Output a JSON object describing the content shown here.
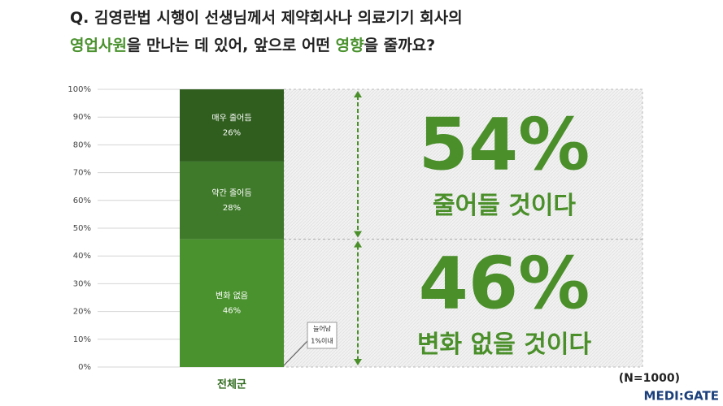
{
  "chart_data": {
    "type": "stacked_bar",
    "title": {
      "lines": [
        [
          {
            "text": "Q. 김영란법 시행이 선생님께서 제약회사나 의료기기 회사의",
            "highlight": false
          }
        ],
        [
          {
            "text": "영업사원",
            "highlight": true
          },
          {
            "text": "을 만나는 데 있어, 앞으로 어떤 ",
            "highlight": false
          },
          {
            "text": "영향",
            "highlight": true
          },
          {
            "text": "을 줄까요?",
            "highlight": false
          }
        ]
      ],
      "highlight_color": "#4a922e"
    },
    "categories": [
      "전체군"
    ],
    "series": [
      {
        "name": "변화 없음",
        "color": "#4a922e",
        "values": [
          46
        ],
        "value_labels": [
          "46%"
        ]
      },
      {
        "name": "약간 줄어듬",
        "color": "#3f7a2a",
        "values": [
          28
        ],
        "value_labels": [
          "28%"
        ]
      },
      {
        "name": "매우 줄어듬",
        "color": "#2f5e1e",
        "values": [
          26
        ],
        "value_labels": [
          "26%"
        ]
      }
    ],
    "ylim": [
      0,
      100
    ],
    "yticks": [
      {
        "value": 0,
        "label": "0%"
      },
      {
        "value": 10,
        "label": "10%"
      },
      {
        "value": 20,
        "label": "20%"
      },
      {
        "value": 30,
        "label": "30%"
      },
      {
        "value": 40,
        "label": "40%"
      },
      {
        "value": 50,
        "label": "50%"
      },
      {
        "value": 60,
        "label": "60%"
      },
      {
        "value": 70,
        "label": "70%"
      },
      {
        "value": 80,
        "label": "80%"
      },
      {
        "value": 90,
        "label": "90%"
      },
      {
        "value": 100,
        "label": "100%"
      }
    ],
    "grid": true,
    "summaries": [
      {
        "value": 54,
        "label": "54%",
        "text": "줄어들 것이다",
        "from": "top"
      },
      {
        "value": 46,
        "label": "46%",
        "text": "변화 없을 것이다",
        "from": "bottom"
      }
    ],
    "summary_color": "#4a8f2a",
    "annotation": {
      "lines": [
        "늘어남",
        "1%이내"
      ]
    },
    "note": "(N=1000)",
    "logo": "MEDI:GATE"
  }
}
